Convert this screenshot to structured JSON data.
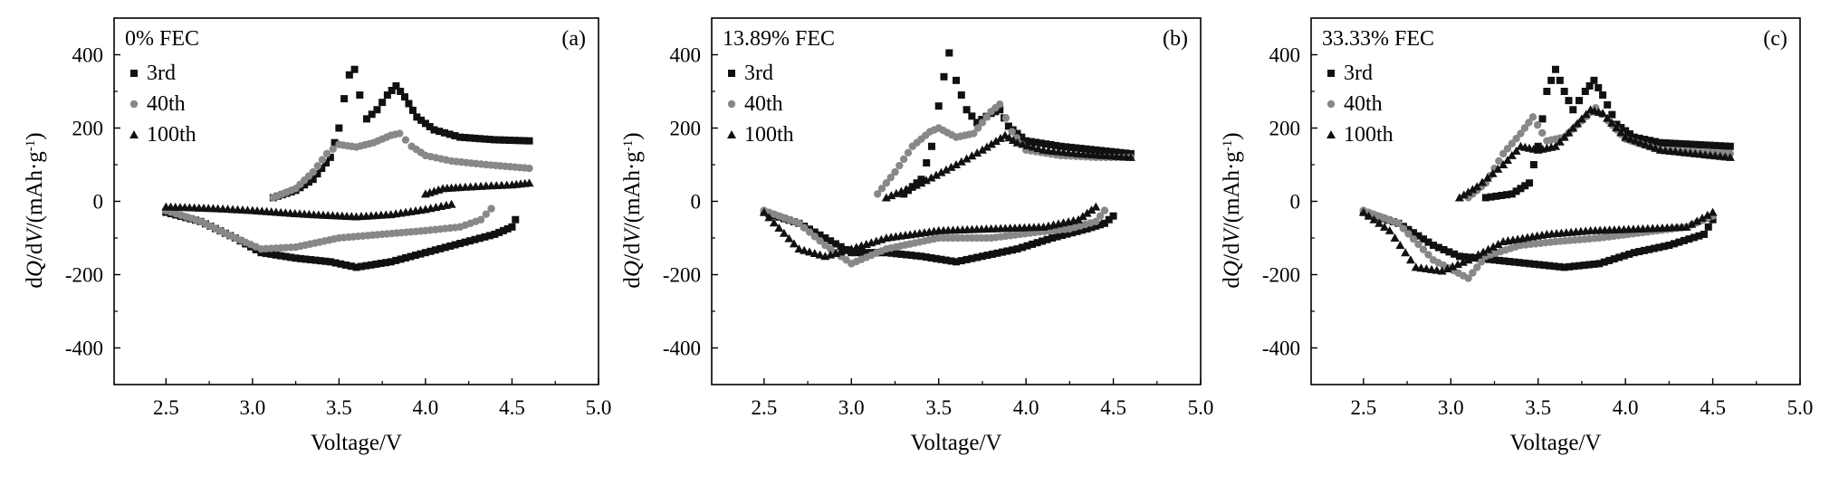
{
  "chart_data": [
    {
      "type": "scatter",
      "panel_label": "(a)",
      "condition": "0% FEC",
      "xlabel": "Voltage/V",
      "ylabel_parts": [
        "d",
        "Q",
        "/d",
        "V",
        "/(mAh·g",
        "-1",
        ")"
      ],
      "xlim": [
        2.2,
        5.0
      ],
      "ylim": [
        -500,
        500
      ],
      "xticks": [
        "2.5",
        "3.0",
        "3.5",
        "4.0",
        "4.5",
        "5.0"
      ],
      "yticks": [
        "400",
        "200",
        "0",
        "-200",
        "-400"
      ],
      "series": [
        {
          "name": "3rd",
          "marker": "square",
          "color": "#111111",
          "charge": [
            [
              3.12,
              10
            ],
            [
              3.25,
              30
            ],
            [
              3.35,
              60
            ],
            [
              3.45,
              120
            ],
            [
              3.5,
              200
            ],
            [
              3.53,
              280
            ],
            [
              3.56,
              345
            ],
            [
              3.59,
              360
            ],
            [
              3.62,
              290
            ],
            [
              3.66,
              225
            ],
            [
              3.72,
              250
            ],
            [
              3.78,
              290
            ],
            [
              3.83,
              315
            ],
            [
              3.88,
              285
            ],
            [
              3.95,
              230
            ],
            [
              4.05,
              195
            ],
            [
              4.2,
              175
            ],
            [
              4.4,
              168
            ],
            [
              4.6,
              165
            ]
          ],
          "discharge": [
            [
              2.5,
              -30
            ],
            [
              2.7,
              -55
            ],
            [
              2.9,
              -100
            ],
            [
              3.05,
              -140
            ],
            [
              3.25,
              -155
            ],
            [
              3.45,
              -165
            ],
            [
              3.6,
              -180
            ],
            [
              3.8,
              -165
            ],
            [
              4.0,
              -140
            ],
            [
              4.2,
              -115
            ],
            [
              4.4,
              -90
            ],
            [
              4.5,
              -70
            ],
            [
              4.52,
              -50
            ]
          ]
        },
        {
          "name": "40th",
          "marker": "circle",
          "color": "#888888",
          "charge": [
            [
              3.12,
              10
            ],
            [
              3.25,
              35
            ],
            [
              3.35,
              80
            ],
            [
              3.43,
              130
            ],
            [
              3.5,
              155
            ],
            [
              3.6,
              148
            ],
            [
              3.7,
              160
            ],
            [
              3.8,
              180
            ],
            [
              3.85,
              185
            ],
            [
              3.92,
              150
            ],
            [
              4.0,
              125
            ],
            [
              4.15,
              110
            ],
            [
              4.35,
              100
            ],
            [
              4.6,
              90
            ]
          ],
          "discharge": [
            [
              2.5,
              -25
            ],
            [
              2.7,
              -55
            ],
            [
              2.9,
              -100
            ],
            [
              3.05,
              -130
            ],
            [
              3.25,
              -125
            ],
            [
              3.5,
              -100
            ],
            [
              3.75,
              -90
            ],
            [
              4.0,
              -80
            ],
            [
              4.2,
              -70
            ],
            [
              4.32,
              -50
            ],
            [
              4.38,
              -20
            ]
          ]
        },
        {
          "name": "100th",
          "marker": "triangle",
          "color": "#111111",
          "charge": [
            [
              4.0,
              20
            ],
            [
              4.1,
              35
            ],
            [
              4.2,
              38
            ],
            [
              4.35,
              42
            ],
            [
              4.5,
              45
            ],
            [
              4.6,
              50
            ]
          ],
          "discharge": [
            [
              2.5,
              -15
            ],
            [
              2.8,
              -20
            ],
            [
              3.0,
              -25
            ],
            [
              3.3,
              -35
            ],
            [
              3.6,
              -42
            ],
            [
              3.8,
              -36
            ],
            [
              4.0,
              -22
            ],
            [
              4.15,
              -8
            ]
          ]
        }
      ]
    },
    {
      "type": "scatter",
      "panel_label": "(b)",
      "condition": "13.89% FEC",
      "xlabel": "Voltage/V",
      "ylabel_parts": [
        "d",
        "Q",
        "/d",
        "V",
        "/(mAh·g",
        "-1",
        ")"
      ],
      "xlim": [
        2.2,
        5.0
      ],
      "ylim": [
        -500,
        500
      ],
      "xticks": [
        "2.5",
        "3.0",
        "3.5",
        "4.0",
        "4.5",
        "5.0"
      ],
      "yticks": [
        "400",
        "200",
        "0",
        "-200",
        "-400"
      ],
      "series": [
        {
          "name": "3rd",
          "marker": "square",
          "color": "#111111",
          "charge": [
            [
              3.3,
              20
            ],
            [
              3.4,
              60
            ],
            [
              3.46,
              150
            ],
            [
              3.5,
              260
            ],
            [
              3.53,
              340
            ],
            [
              3.56,
              405
            ],
            [
              3.6,
              330
            ],
            [
              3.66,
              250
            ],
            [
              3.72,
              215
            ],
            [
              3.8,
              240
            ],
            [
              3.85,
              250
            ],
            [
              3.9,
              205
            ],
            [
              4.0,
              165
            ],
            [
              4.2,
              150
            ],
            [
              4.4,
              140
            ],
            [
              4.6,
              130
            ]
          ],
          "discharge": [
            [
              2.5,
              -30
            ],
            [
              2.7,
              -60
            ],
            [
              2.85,
              -100
            ],
            [
              3.0,
              -140
            ],
            [
              3.2,
              -140
            ],
            [
              3.4,
              -150
            ],
            [
              3.6,
              -165
            ],
            [
              3.75,
              -150
            ],
            [
              3.95,
              -130
            ],
            [
              4.15,
              -100
            ],
            [
              4.35,
              -75
            ],
            [
              4.45,
              -60
            ],
            [
              4.5,
              -40
            ]
          ]
        },
        {
          "name": "40th",
          "marker": "circle",
          "color": "#888888",
          "charge": [
            [
              3.15,
              20
            ],
            [
              3.25,
              80
            ],
            [
              3.35,
              150
            ],
            [
              3.45,
              190
            ],
            [
              3.5,
              200
            ],
            [
              3.6,
              175
            ],
            [
              3.7,
              185
            ],
            [
              3.8,
              245
            ],
            [
              3.85,
              265
            ],
            [
              3.92,
              190
            ],
            [
              4.0,
              140
            ],
            [
              4.2,
              125
            ],
            [
              4.4,
              120
            ],
            [
              4.6,
              120
            ]
          ],
          "discharge": [
            [
              2.5,
              -25
            ],
            [
              2.7,
              -60
            ],
            [
              2.85,
              -120
            ],
            [
              3.0,
              -170
            ],
            [
              3.2,
              -130
            ],
            [
              3.5,
              -100
            ],
            [
              3.8,
              -100
            ],
            [
              4.05,
              -85
            ],
            [
              4.25,
              -75
            ],
            [
              4.4,
              -55
            ],
            [
              4.45,
              -25
            ]
          ]
        },
        {
          "name": "100th",
          "marker": "triangle",
          "color": "#111111",
          "charge": [
            [
              3.2,
              10
            ],
            [
              3.4,
              50
            ],
            [
              3.6,
              100
            ],
            [
              3.75,
              140
            ],
            [
              3.88,
              180
            ],
            [
              3.95,
              160
            ],
            [
              4.1,
              140
            ],
            [
              4.3,
              130
            ],
            [
              4.6,
              120
            ]
          ],
          "discharge": [
            [
              2.5,
              -30
            ],
            [
              2.7,
              -130
            ],
            [
              2.85,
              -150
            ],
            [
              3.0,
              -130
            ],
            [
              3.2,
              -100
            ],
            [
              3.5,
              -80
            ],
            [
              3.8,
              -75
            ],
            [
              4.1,
              -70
            ],
            [
              4.3,
              -50
            ],
            [
              4.4,
              -15
            ]
          ]
        }
      ]
    },
    {
      "type": "scatter",
      "panel_label": "(c)",
      "condition": "33.33% FEC",
      "xlabel": "Voltage/V",
      "ylabel_parts": [
        "d",
        "Q",
        "/d",
        "V",
        "/(mAh·g",
        "-1",
        ")"
      ],
      "xlim": [
        2.2,
        5.0
      ],
      "ylim": [
        -500,
        500
      ],
      "xticks": [
        "2.5",
        "3.0",
        "3.5",
        "4.0",
        "4.5",
        "5.0"
      ],
      "yticks": [
        "400",
        "200",
        "0",
        "-200",
        "-400"
      ],
      "series": [
        {
          "name": "3rd",
          "marker": "square",
          "color": "#111111",
          "charge": [
            [
              3.2,
              10
            ],
            [
              3.35,
              20
            ],
            [
              3.45,
              50
            ],
            [
              3.5,
              150
            ],
            [
              3.55,
              300
            ],
            [
              3.6,
              360
            ],
            [
              3.65,
              300
            ],
            [
              3.7,
              250
            ],
            [
              3.77,
              300
            ],
            [
              3.82,
              330
            ],
            [
              3.87,
              290
            ],
            [
              3.95,
              210
            ],
            [
              4.05,
              175
            ],
            [
              4.2,
              160
            ],
            [
              4.4,
              155
            ],
            [
              4.6,
              150
            ]
          ],
          "discharge": [
            [
              2.5,
              -30
            ],
            [
              2.7,
              -60
            ],
            [
              2.9,
              -120
            ],
            [
              3.05,
              -150
            ],
            [
              3.25,
              -160
            ],
            [
              3.45,
              -170
            ],
            [
              3.65,
              -180
            ],
            [
              3.85,
              -170
            ],
            [
              4.05,
              -140
            ],
            [
              4.25,
              -120
            ],
            [
              4.45,
              -90
            ],
            [
              4.5,
              -50
            ]
          ]
        },
        {
          "name": "40th",
          "marker": "circle",
          "color": "#888888",
          "charge": [
            [
              3.1,
              10
            ],
            [
              3.2,
              50
            ],
            [
              3.3,
              130
            ],
            [
              3.4,
              185
            ],
            [
              3.47,
              230
            ],
            [
              3.55,
              165
            ],
            [
              3.65,
              175
            ],
            [
              3.75,
              220
            ],
            [
              3.83,
              255
            ],
            [
              3.9,
              220
            ],
            [
              4.0,
              170
            ],
            [
              4.2,
              140
            ],
            [
              4.4,
              135
            ],
            [
              4.6,
              130
            ]
          ],
          "discharge": [
            [
              2.5,
              -25
            ],
            [
              2.7,
              -60
            ],
            [
              2.9,
              -160
            ],
            [
              3.1,
              -210
            ],
            [
              3.2,
              -150
            ],
            [
              3.4,
              -120
            ],
            [
              3.6,
              -110
            ],
            [
              3.85,
              -100
            ],
            [
              4.1,
              -85
            ],
            [
              4.35,
              -70
            ],
            [
              4.5,
              -40
            ]
          ]
        },
        {
          "name": "100th",
          "marker": "triangle",
          "color": "#111111",
          "charge": [
            [
              3.05,
              10
            ],
            [
              3.15,
              40
            ],
            [
              3.3,
              100
            ],
            [
              3.4,
              150
            ],
            [
              3.5,
              140
            ],
            [
              3.6,
              150
            ],
            [
              3.7,
              200
            ],
            [
              3.8,
              250
            ],
            [
              3.87,
              240
            ],
            [
              4.0,
              175
            ],
            [
              4.2,
              140
            ],
            [
              4.4,
              130
            ],
            [
              4.6,
              120
            ]
          ],
          "discharge": [
            [
              2.5,
              -30
            ],
            [
              2.65,
              -80
            ],
            [
              2.8,
              -180
            ],
            [
              2.95,
              -190
            ],
            [
              3.1,
              -160
            ],
            [
              3.3,
              -110
            ],
            [
              3.55,
              -90
            ],
            [
              3.8,
              -80
            ],
            [
              4.1,
              -75
            ],
            [
              4.35,
              -70
            ],
            [
              4.5,
              -30
            ]
          ]
        }
      ]
    }
  ]
}
